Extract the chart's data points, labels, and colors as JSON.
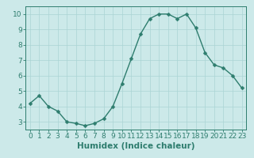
{
  "x": [
    0,
    1,
    2,
    3,
    4,
    5,
    6,
    7,
    8,
    9,
    10,
    11,
    12,
    13,
    14,
    15,
    16,
    17,
    18,
    19,
    20,
    21,
    22,
    23
  ],
  "y": [
    4.2,
    4.7,
    4.0,
    3.7,
    3.0,
    2.9,
    2.75,
    2.9,
    3.2,
    4.0,
    5.5,
    7.1,
    8.7,
    9.7,
    10.0,
    10.0,
    9.7,
    10.0,
    9.1,
    7.5,
    6.7,
    6.5,
    6.0,
    5.2
  ],
  "line_color": "#2e7d6e",
  "marker": "D",
  "marker_size": 2.5,
  "bg_color": "#cce9e9",
  "grid_color": "#aad4d4",
  "axis_color": "#2e7d6e",
  "xlabel": "Humidex (Indice chaleur)",
  "xlim": [
    -0.5,
    23.5
  ],
  "ylim": [
    2.5,
    10.5
  ],
  "yticks": [
    3,
    4,
    5,
    6,
    7,
    8,
    9,
    10
  ],
  "xticks": [
    0,
    1,
    2,
    3,
    4,
    5,
    6,
    7,
    8,
    9,
    10,
    11,
    12,
    13,
    14,
    15,
    16,
    17,
    18,
    19,
    20,
    21,
    22,
    23
  ],
  "xlabel_fontsize": 7.5,
  "tick_fontsize": 6.5,
  "line_width": 1.0
}
